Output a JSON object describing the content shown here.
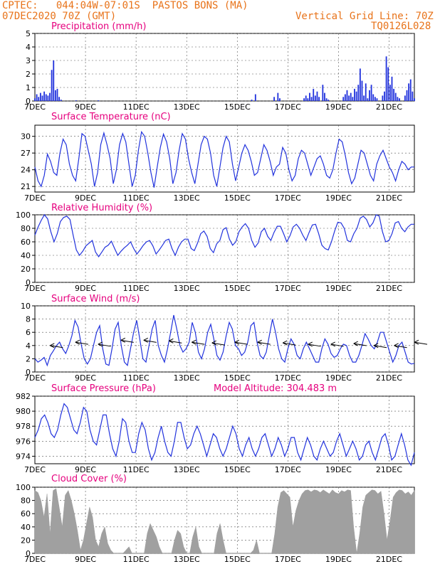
{
  "header": {
    "line1_left": "CPTEC:   044:04W-07:01S  PASTOS BONS (MA)",
    "line2_left": "07DEC2020 70Z (GMT)",
    "line2_right": "Vertical Grid Line: 70Z",
    "line3_right": "TQ0126L028"
  },
  "colors": {
    "header": "#e8731a",
    "title": "#e6007e",
    "line": "#2233dd",
    "cloud": "#a0a0a0",
    "grid": "#555555"
  },
  "x_axis": {
    "labels": [
      "7DEC",
      "9DEC",
      "11DEC",
      "13DEC",
      "15DEC",
      "17DEC",
      "19DEC",
      "21DEC"
    ],
    "range_days": [
      0,
      15
    ]
  },
  "chart_data": [
    {
      "id": "precip",
      "type": "bar",
      "title": "Precipitation (mm/h)",
      "ylim": [
        0,
        5
      ],
      "yticks": [
        0,
        1,
        2,
        3,
        4,
        5
      ],
      "series": [
        {
          "values": [
            0.2,
            0.5,
            0.3,
            0.6,
            0.4,
            0.7,
            0.5,
            0.4,
            0.6,
            2.3,
            3.0,
            0.8,
            0.9,
            0.3,
            0.1,
            0,
            0,
            0,
            0,
            0,
            0,
            0,
            0.05,
            0,
            0,
            0,
            0,
            0,
            0,
            0,
            0,
            0,
            0,
            0,
            0.05,
            0,
            0,
            0,
            0,
            0,
            0,
            0,
            0,
            0,
            0,
            0,
            0,
            0,
            0,
            0,
            0,
            0,
            0,
            0,
            0,
            0,
            0,
            0,
            0,
            0,
            0,
            0,
            0,
            0,
            0,
            0,
            0,
            0,
            0,
            0,
            0,
            0,
            0,
            0,
            0,
            0,
            0,
            0,
            0,
            0,
            0,
            0,
            0,
            0,
            0,
            0,
            0,
            0,
            0,
            0,
            0,
            0,
            0,
            0,
            0,
            0,
            0,
            0,
            0,
            0,
            0,
            0,
            0,
            0,
            0,
            0,
            0,
            0,
            0,
            0,
            0,
            0,
            0,
            0,
            0,
            0,
            0.1,
            0,
            0.5,
            0,
            0,
            0,
            0,
            0,
            0,
            0,
            0,
            0,
            0.3,
            0,
            0.6,
            0.2,
            0,
            0,
            0,
            0,
            0,
            0,
            0,
            0,
            0,
            0,
            0,
            0,
            0.2,
            0.4,
            0.2,
            0.6,
            0.3,
            0.9,
            0.4,
            0.7,
            0.3,
            0,
            1.2,
            0.6,
            0.2,
            0.1,
            0,
            0,
            0,
            0,
            0,
            0,
            0,
            0.3,
            0.5,
            0.8,
            0.4,
            0.6,
            0.3,
            0.9,
            0.7,
            1.2,
            2.4,
            1.5,
            0.4,
            1.3,
            0.2,
            0.8,
            1.2,
            0.5,
            0.3,
            0.2,
            0,
            0,
            0.4,
            0.7,
            3.3,
            2.5,
            1.2,
            1.8,
            0.9,
            0.6,
            0.3,
            0.2,
            0,
            0,
            0.4,
            0.8,
            1.3,
            1.6,
            0.7,
            0.2
          ]
        }
      ]
    },
    {
      "id": "temp",
      "type": "line",
      "title": "Surface Temperature (nC)",
      "ylim": [
        20,
        32
      ],
      "yticks": [
        21,
        24,
        27,
        30
      ],
      "series": [
        {
          "values": [
            24.5,
            22.0,
            21.0,
            23.0,
            26.8,
            25.5,
            23.5,
            23.0,
            27.0,
            29.5,
            28.5,
            25.0,
            23.0,
            22.0,
            26.0,
            30.5,
            30.0,
            27.5,
            25.0,
            21.0,
            23.5,
            28.5,
            30.6,
            28.5,
            26.0,
            21.5,
            24.0,
            28.5,
            30.5,
            29.0,
            25.0,
            21.0,
            23.0,
            27.5,
            30.8,
            30.0,
            27.0,
            23.5,
            20.8,
            24.5,
            28.0,
            30.4,
            29.0,
            26.0,
            21.5,
            23.5,
            27.5,
            30.5,
            29.5,
            26.0,
            23.5,
            21.5,
            25.0,
            28.5,
            30.0,
            29.5,
            27.0,
            23.0,
            21.0,
            24.5,
            28.0,
            30.0,
            29.0,
            25.0,
            22.0,
            24.5,
            27.0,
            28.5,
            27.5,
            25.5,
            23.0,
            23.5,
            26.0,
            28.5,
            27.5,
            25.5,
            23.0,
            24.5,
            25.0,
            28.0,
            27.0,
            24.0,
            22.0,
            23.0,
            26.0,
            27.5,
            27.0,
            25.0,
            23.0,
            24.5,
            26.0,
            26.5,
            25.0,
            23.0,
            22.5,
            24.0,
            27.0,
            29.5,
            29.0,
            26.5,
            23.5,
            21.5,
            22.5,
            25.0,
            27.5,
            27.0,
            25.0,
            23.0,
            22.0,
            25.0,
            26.5,
            27.5,
            26.0,
            24.5,
            23.5,
            22.0,
            24.0,
            25.5,
            25.0,
            24.0,
            24.5,
            24.5
          ]
        }
      ]
    },
    {
      "id": "rh",
      "type": "line",
      "title": "Relative Humidity (%)",
      "ylim": [
        0,
        100
      ],
      "yticks": [
        0,
        20,
        40,
        60,
        80,
        100
      ],
      "series": [
        {
          "values": [
            70,
            82,
            92,
            100,
            94,
            75,
            60,
            72,
            90,
            96,
            98,
            93,
            70,
            48,
            40,
            46,
            54,
            58,
            62,
            45,
            38,
            45,
            52,
            55,
            61,
            50,
            40,
            46,
            51,
            55,
            60,
            50,
            42,
            48,
            55,
            60,
            62,
            54,
            42,
            48,
            55,
            62,
            64,
            50,
            40,
            52,
            60,
            64,
            64,
            50,
            47,
            58,
            72,
            76,
            68,
            50,
            44,
            57,
            62,
            78,
            81,
            64,
            55,
            60,
            75,
            82,
            87,
            80,
            62,
            52,
            58,
            75,
            80,
            68,
            62,
            74,
            83,
            83,
            72,
            60,
            69,
            82,
            86,
            80,
            70,
            62,
            74,
            85,
            86,
            72,
            55,
            50,
            48,
            60,
            76,
            89,
            88,
            80,
            62,
            60,
            72,
            80,
            95,
            98,
            93,
            82,
            88,
            100,
            98,
            75,
            60,
            62,
            72,
            88,
            90,
            80,
            75,
            82,
            86,
            86
          ]
        }
      ]
    },
    {
      "id": "wind",
      "type": "line",
      "title": "Surface Wind (m/s)",
      "ylim": [
        0,
        10
      ],
      "yticks": [
        0,
        2,
        4,
        6,
        8,
        10
      ],
      "series": [
        {
          "values": [
            2.0,
            1.5,
            1.8,
            2.2,
            1.0,
            2.5,
            3.2,
            4.0,
            4.5,
            3.5,
            2.8,
            4.0,
            5.5,
            7.8,
            6.8,
            4.2,
            2.0,
            1.2,
            2.0,
            4.0,
            6.0,
            7.0,
            3.5,
            1.2,
            1.0,
            3.5,
            6.5,
            7.5,
            4.0,
            1.5,
            1.0,
            3.5,
            6.0,
            7.8,
            5.0,
            2.0,
            1.5,
            4.0,
            6.5,
            7.8,
            4.0,
            2.5,
            1.5,
            3.5,
            6.0,
            8.6,
            6.5,
            4.0,
            3.0,
            3.5,
            4.5,
            7.5,
            6.0,
            3.0,
            2.0,
            3.5,
            6.0,
            7.2,
            5.0,
            2.5,
            1.8,
            3.0,
            5.5,
            7.5,
            6.5,
            4.0,
            3.5,
            2.5,
            3.0,
            4.5,
            7.0,
            7.5,
            4.5,
            2.5,
            2.0,
            3.0,
            5.5,
            8.0,
            6.0,
            3.5,
            2.0,
            1.5,
            3.5,
            5.0,
            4.2,
            2.5,
            2.0,
            3.5,
            4.5,
            3.5,
            2.5,
            1.5,
            1.5,
            3.5,
            5.0,
            4.2,
            2.8,
            2.2,
            2.5,
            3.5,
            4.2,
            4.0,
            2.5,
            1.5,
            1.5,
            2.5,
            4.0,
            5.8,
            5.0,
            4.0,
            3.5,
            4.5,
            6.0,
            6.0,
            4.5,
            3.0,
            1.5,
            2.5,
            4.0,
            4.5,
            3.0,
            1.5,
            1.2,
            1.3
          ]
        }
      ],
      "barbs": [
        {
          "day": 0.6,
          "speed": 4.0
        },
        {
          "day": 1.6,
          "speed": 4.5
        },
        {
          "day": 2.5,
          "speed": 4.2
        },
        {
          "day": 3.4,
          "speed": 4.8
        },
        {
          "day": 4.3,
          "speed": 4.8
        },
        {
          "day": 5.3,
          "speed": 4.7
        },
        {
          "day": 6.2,
          "speed": 4.5
        },
        {
          "day": 7.0,
          "speed": 4.4
        },
        {
          "day": 7.9,
          "speed": 4.5
        },
        {
          "day": 8.8,
          "speed": 4.5
        },
        {
          "day": 9.8,
          "speed": 4.4
        },
        {
          "day": 10.8,
          "speed": 4.2
        },
        {
          "day": 11.7,
          "speed": 4.2
        },
        {
          "day": 12.6,
          "speed": 4.3
        },
        {
          "day": 13.4,
          "speed": 4.0
        },
        {
          "day": 14.2,
          "speed": 4.0
        },
        {
          "day": 15.0,
          "speed": 4.5
        }
      ]
    },
    {
      "id": "pres",
      "type": "line",
      "title": "Surface Pressure (hPa)",
      "extra_label": "Model Altitude: 304.483  m",
      "ylim": [
        973,
        982
      ],
      "yticks": [
        974,
        976,
        978,
        980,
        982
      ],
      "series": [
        {
          "values": [
            976.5,
            977.5,
            979.0,
            979.5,
            978.5,
            977.0,
            976.5,
            977.5,
            979.5,
            981.0,
            980.5,
            979.0,
            977.5,
            977.0,
            978.5,
            980.5,
            980.0,
            977.5,
            976.0,
            975.5,
            977.5,
            979.5,
            979.5,
            977.0,
            975.0,
            974.0,
            976.0,
            979.0,
            978.5,
            976.0,
            974.5,
            974.5,
            977.0,
            978.5,
            977.5,
            975.0,
            973.5,
            974.5,
            976.5,
            978.0,
            976.0,
            974.5,
            974.0,
            976.0,
            978.5,
            978.5,
            976.5,
            975.0,
            975.5,
            977.0,
            978.0,
            977.0,
            975.5,
            974.0,
            975.5,
            977.0,
            976.5,
            975.0,
            974.0,
            975.0,
            976.5,
            978.0,
            977.0,
            975.0,
            974.0,
            975.5,
            976.5,
            975.0,
            974.0,
            975.0,
            976.5,
            977.0,
            975.5,
            974.0,
            975.0,
            976.5,
            975.5,
            974.0,
            975.0,
            976.5,
            976.5,
            974.5,
            973.5,
            975.0,
            976.5,
            975.5,
            974.0,
            973.5,
            975.0,
            976.0,
            975.0,
            974.0,
            974.5,
            976.0,
            977.0,
            975.5,
            974.0,
            975.0,
            976.0,
            975.0,
            973.5,
            974.0,
            975.5,
            976.0,
            974.5,
            973.5,
            975.0,
            976.5,
            977.0,
            975.5,
            973.5,
            974.0,
            975.5,
            977.0,
            975.5,
            973.5,
            972.8,
            974.5
          ]
        }
      ]
    },
    {
      "id": "cloud",
      "type": "area",
      "title": "Cloud Cover (%)",
      "ylim": [
        0,
        100
      ],
      "yticks": [
        0,
        20,
        40,
        60,
        80,
        100
      ],
      "series": [
        {
          "values": [
            95,
            92,
            80,
            55,
            90,
            30,
            95,
            98,
            70,
            40,
            88,
            95,
            80,
            60,
            35,
            5,
            20,
            45,
            70,
            55,
            20,
            10,
            30,
            40,
            15,
            5,
            0,
            0,
            0,
            0,
            5,
            10,
            0,
            0,
            0,
            0,
            0,
            30,
            45,
            35,
            25,
            10,
            0,
            0,
            0,
            0,
            20,
            35,
            30,
            10,
            0,
            0,
            25,
            40,
            10,
            0,
            0,
            0,
            0,
            0,
            30,
            45,
            20,
            0,
            0,
            0,
            0,
            0,
            0,
            0,
            0,
            0,
            5,
            20,
            0,
            0,
            0,
            0,
            0,
            30,
            70,
            92,
            95,
            90,
            85,
            40,
            65,
            80,
            90,
            95,
            96,
            93,
            96,
            95,
            92,
            96,
            93,
            90,
            96,
            92,
            90,
            95,
            93,
            96,
            95,
            40,
            0,
            30,
            70,
            88,
            92,
            96,
            95,
            90,
            94,
            60,
            20,
            50,
            85,
            92,
            96,
            95,
            90,
            93,
            88,
            95
          ]
        }
      ]
    }
  ]
}
